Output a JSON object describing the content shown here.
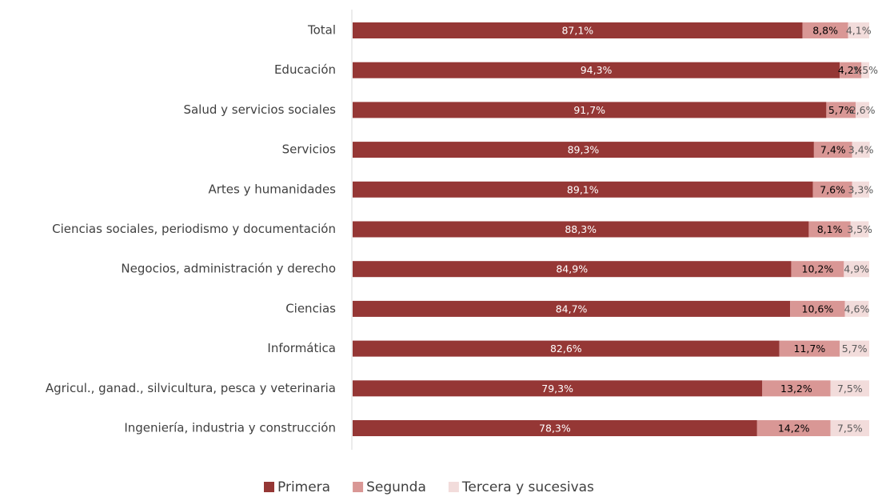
{
  "chart_data": {
    "type": "bar",
    "orientation": "horizontal",
    "stacked": true,
    "categories": [
      "Total",
      "Educación",
      "Salud y servicios sociales",
      "Servicios",
      "Artes y humanidades",
      "Ciencias sociales, periodismo y documentación",
      "Negocios, administración y derecho",
      "Ciencias",
      "Informática",
      "Agricul., ganad., silvicultura, pesca y veterinaria",
      "Ingeniería, industria y construcción"
    ],
    "xlim": [
      0,
      100
    ],
    "legend": "bottom",
    "series": [
      {
        "name": "Primera",
        "color": "#953735",
        "label_color": "#ffffff",
        "values": [
          87.1,
          94.3,
          91.7,
          89.3,
          89.1,
          88.3,
          84.9,
          84.7,
          82.6,
          79.3,
          78.3
        ],
        "value_labels": [
          "87,1%",
          "94,3%",
          "91,7%",
          "89,3%",
          "89,1%",
          "88,3%",
          "84,9%",
          "84,7%",
          "82,6%",
          "79,3%",
          "78,3%"
        ]
      },
      {
        "name": "Segunda",
        "color": "#d99795",
        "label_color": "#000000",
        "values": [
          8.8,
          4.2,
          5.7,
          7.4,
          7.6,
          8.1,
          10.2,
          10.6,
          11.7,
          13.2,
          14.2
        ],
        "value_labels": [
          "8,8%",
          "4,2%",
          "5,7%",
          "7,4%",
          "7,6%",
          "8,1%",
          "10,2%",
          "10,6%",
          "11,7%",
          "13,2%",
          "14,2%"
        ]
      },
      {
        "name": "Tercera y sucesivas",
        "color": "#f2dcdb",
        "label_color": "#595959",
        "values": [
          4.1,
          1.5,
          2.6,
          3.4,
          3.3,
          3.5,
          4.9,
          4.6,
          5.7,
          7.5,
          7.5
        ],
        "value_labels": [
          "4,1%",
          "1,5%",
          "2,6%",
          "3,4%",
          "3,3%",
          "3,5%",
          "4,9%",
          "4,6%",
          "5,7%",
          "7,5%",
          "7,5%"
        ]
      }
    ]
  }
}
